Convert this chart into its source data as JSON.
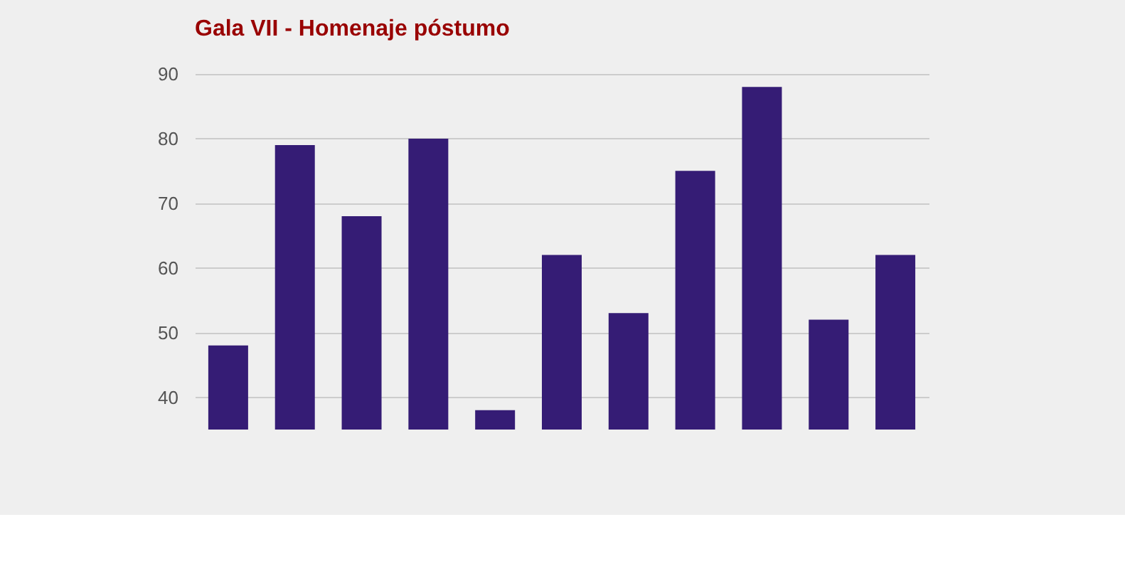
{
  "chart_data": {
    "type": "bar",
    "title": "Gala VII - Homenaje póstumo",
    "categories": [
      null,
      null,
      null,
      null,
      null,
      null,
      null,
      null,
      null,
      null,
      null
    ],
    "values": [
      48,
      79,
      68,
      80,
      38,
      62,
      53,
      75,
      88,
      52,
      62
    ],
    "color": "#351c75",
    "ylim": [
      35,
      90
    ],
    "yticks": [
      40,
      50,
      60,
      70,
      80,
      90
    ],
    "grid": "y",
    "tick_labels": "y"
  }
}
